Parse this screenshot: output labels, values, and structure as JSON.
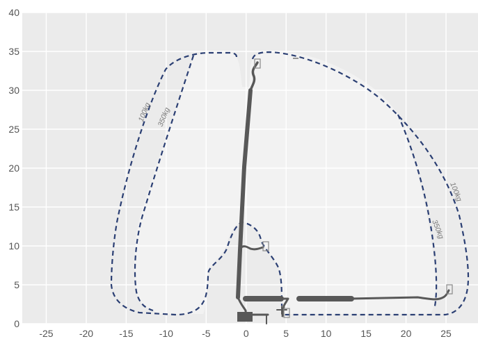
{
  "diagram": {
    "x_axis": {
      "min": -28,
      "max": 29,
      "ticks": [
        -25,
        -20,
        -15,
        -10,
        -5,
        0,
        5,
        10,
        15,
        20,
        25
      ]
    },
    "y_axis": {
      "min": 0,
      "max": 40,
      "ticks": [
        0,
        5,
        10,
        15,
        20,
        25,
        30,
        35,
        40
      ]
    },
    "grid": true,
    "envelopes": [
      {
        "id": "outer-100kg",
        "label": "100kg"
      },
      {
        "id": "inner-350kg",
        "label": "350kg"
      }
    ],
    "colors": {
      "plot_background": "#ebebeb",
      "inner_region": "#f2f2f2",
      "envelope_line": "#2b3f73",
      "boom": "#585858",
      "labels": "#7a7a7a"
    }
  }
}
